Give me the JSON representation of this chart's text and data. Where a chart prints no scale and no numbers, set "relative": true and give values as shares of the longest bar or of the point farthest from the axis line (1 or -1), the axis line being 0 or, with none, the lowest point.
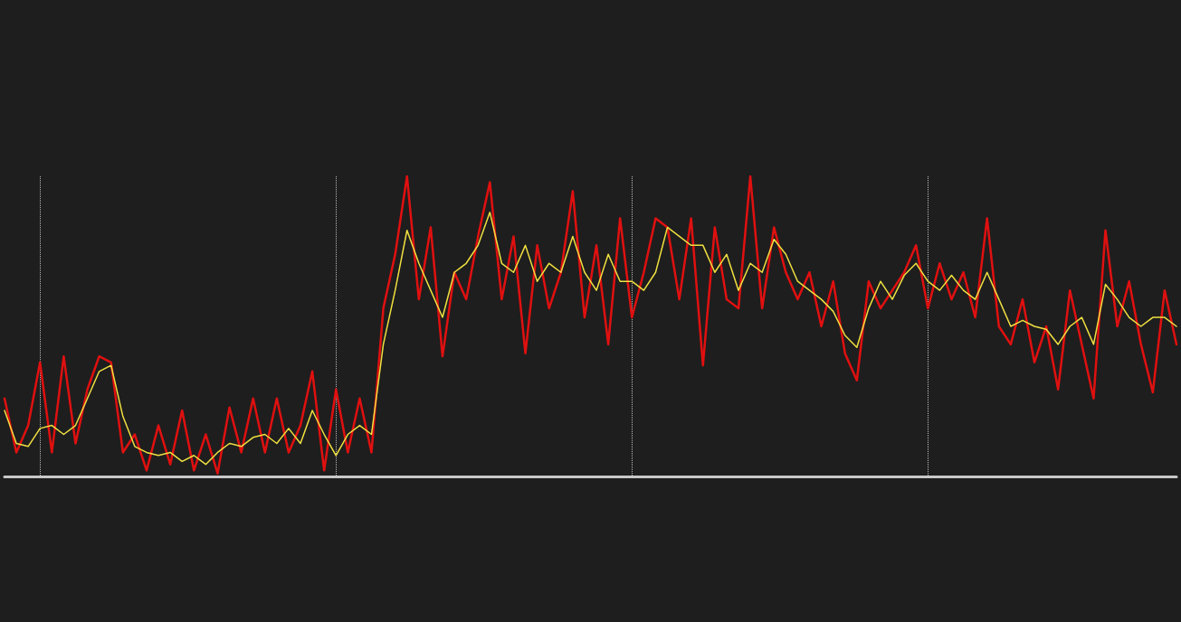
{
  "chart_data": {
    "type": "line",
    "relative": true,
    "grid": "x",
    "marker": "none",
    "categories": [
      null,
      null,
      null,
      null,
      null,
      null,
      null,
      null,
      null,
      null,
      null,
      null,
      null,
      null,
      null,
      null,
      null,
      null,
      null,
      null,
      null,
      null,
      null,
      null,
      null,
      null,
      null,
      null,
      null,
      null,
      null,
      null,
      null,
      null,
      null,
      null,
      null,
      null,
      null,
      null,
      null,
      null,
      null,
      null,
      null,
      null,
      null,
      null,
      null,
      null,
      null,
      null,
      null,
      null,
      null,
      null,
      null,
      null,
      null,
      null,
      null,
      null,
      null,
      null,
      null,
      null,
      null,
      null,
      null,
      null,
      null,
      null,
      null,
      null,
      null,
      null,
      null,
      null,
      null,
      null,
      null,
      null,
      null,
      null,
      null,
      null,
      null,
      null,
      null,
      null,
      null,
      null,
      null,
      null,
      null,
      null,
      null,
      null,
      null,
      null
    ],
    "series": [
      {
        "color": "#e01010",
        "values": [
          0.26,
          0.08,
          0.17,
          0.38,
          0.08,
          0.4,
          0.11,
          0.29,
          0.4,
          0.38,
          0.08,
          0.14,
          0.02,
          0.17,
          0.04,
          0.22,
          0.02,
          0.14,
          0.01,
          0.23,
          0.08,
          0.26,
          0.08,
          0.26,
          0.08,
          0.17,
          0.35,
          0.02,
          0.29,
          0.08,
          0.26,
          0.08,
          0.56,
          0.74,
          1,
          0.59,
          0.83,
          0.4,
          0.68,
          0.59,
          0.8,
          0.98,
          0.59,
          0.8,
          0.41,
          0.77,
          0.56,
          0.68,
          0.95,
          0.53,
          0.77,
          0.44,
          0.86,
          0.53,
          0.68,
          0.86,
          0.83,
          0.59,
          0.86,
          0.37,
          0.83,
          0.59,
          0.56,
          1,
          0.56,
          0.83,
          0.68,
          0.59,
          0.68,
          0.5,
          0.65,
          0.41,
          0.32,
          0.65,
          0.56,
          0.62,
          0.68,
          0.77,
          0.56,
          0.71,
          0.59,
          0.68,
          0.53,
          0.86,
          0.5,
          0.44,
          0.59,
          0.38,
          0.5,
          0.29,
          0.62,
          0.44,
          0.26,
          0.82,
          0.5,
          0.65,
          0.44,
          0.28,
          0.62,
          0.44
        ]
      },
      {
        "color": "#f0e040",
        "values": [
          0.22,
          0.11,
          0.1,
          0.16,
          0.17,
          0.14,
          0.17,
          0.26,
          0.35,
          0.37,
          0.2,
          0.1,
          0.08,
          0.07,
          0.08,
          0.05,
          0.07,
          0.04,
          0.08,
          0.11,
          0.1,
          0.13,
          0.14,
          0.11,
          0.16,
          0.11,
          0.22,
          0.14,
          0.07,
          0.14,
          0.17,
          0.14,
          0.44,
          0.62,
          0.82,
          0.71,
          0.62,
          0.53,
          0.68,
          0.71,
          0.77,
          0.88,
          0.71,
          0.68,
          0.77,
          0.65,
          0.71,
          0.68,
          0.8,
          0.68,
          0.62,
          0.74,
          0.65,
          0.65,
          0.62,
          0.68,
          0.83,
          0.8,
          0.77,
          0.77,
          0.68,
          0.74,
          0.62,
          0.71,
          0.68,
          0.79,
          0.74,
          0.65,
          0.62,
          0.59,
          0.55,
          0.47,
          0.43,
          0.56,
          0.65,
          0.59,
          0.67,
          0.71,
          0.65,
          0.62,
          0.67,
          0.62,
          0.59,
          0.68,
          0.59,
          0.5,
          0.52,
          0.5,
          0.49,
          0.44,
          0.5,
          0.53,
          0.44,
          0.64,
          0.59,
          0.53,
          0.5,
          0.53,
          0.53,
          0.5
        ]
      }
    ]
  }
}
